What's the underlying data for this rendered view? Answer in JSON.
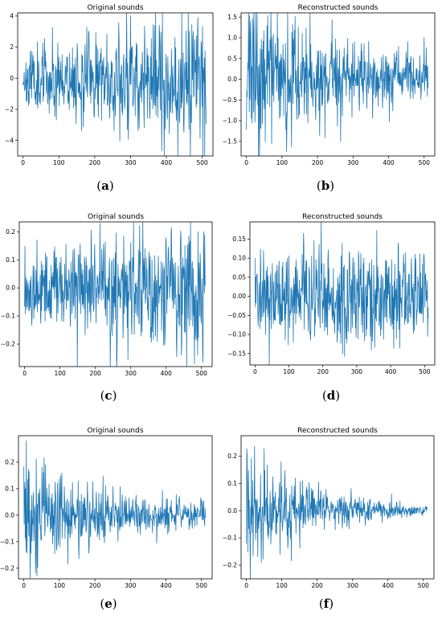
{
  "panels": [
    {
      "id": "a",
      "caption": "a",
      "chart_data": {
        "type": "line",
        "title": "Original sounds",
        "xlabel": "",
        "ylabel": "",
        "xlim": [
          -15,
          530
        ],
        "ylim": [
          -5.0,
          4.2
        ],
        "xticks": [
          0,
          100,
          200,
          300,
          400,
          500
        ],
        "yticks": [
          -4,
          -2,
          0,
          2,
          4
        ],
        "ytick_labels": [
          "−4",
          "−2",
          "0",
          "2",
          "4"
        ],
        "series": [
          {
            "color": "#1f77b4",
            "n": 512,
            "seed": 11,
            "style": "growing",
            "amp_start": 0.9,
            "amp_end": 2.3,
            "mean": 0.0
          }
        ]
      }
    },
    {
      "id": "b",
      "caption": "b",
      "chart_data": {
        "type": "line",
        "title": "Reconstructed sounds",
        "xlabel": "",
        "ylabel": "",
        "xlim": [
          -15,
          530
        ],
        "ylim": [
          -1.85,
          1.6
        ],
        "xticks": [
          0,
          100,
          200,
          300,
          400,
          500
        ],
        "yticks": [
          -1.5,
          -1.0,
          -0.5,
          0.0,
          0.5,
          1.0,
          1.5
        ],
        "ytick_labels": [
          "−1.5",
          "−1.0",
          "−0.5",
          "0.0",
          "0.5",
          "1.0",
          "1.5"
        ],
        "series": [
          {
            "color": "#1f77b4",
            "n": 512,
            "seed": 23,
            "style": "decaying",
            "amp_start": 1.1,
            "amp_end": 0.28,
            "mean": 0.0
          }
        ]
      }
    },
    {
      "id": "c",
      "caption": "c",
      "chart_data": {
        "type": "line",
        "title": "Original sounds",
        "xlabel": "",
        "ylabel": "",
        "xlim": [
          -15,
          530
        ],
        "ylim": [
          -0.28,
          0.235
        ],
        "xticks": [
          0,
          100,
          200,
          300,
          400,
          500
        ],
        "yticks": [
          -0.2,
          -0.1,
          0.0,
          0.1,
          0.2
        ],
        "ytick_labels": [
          "−0.2",
          "−0.1",
          "0.0",
          "0.1",
          "0.2"
        ],
        "series": [
          {
            "color": "#1f77b4",
            "n": 512,
            "seed": 37,
            "style": "growing",
            "amp_start": 0.06,
            "amp_end": 0.13,
            "mean": 0.0
          }
        ]
      }
    },
    {
      "id": "d",
      "caption": "d",
      "chart_data": {
        "type": "line",
        "title": "Reconstructed sounds",
        "xlabel": "",
        "ylabel": "",
        "xlim": [
          -15,
          530
        ],
        "ylim": [
          -0.18,
          0.195
        ],
        "xticks": [
          0,
          100,
          200,
          300,
          400,
          500
        ],
        "yticks": [
          -0.15,
          -0.1,
          -0.05,
          0.0,
          0.05,
          0.1,
          0.15
        ],
        "ytick_labels": [
          "−0.15",
          "−0.10",
          "−0.05",
          "0.00",
          "0.05",
          "0.10",
          "0.15"
        ],
        "series": [
          {
            "color": "#1f77b4",
            "n": 512,
            "seed": 41,
            "style": "flat",
            "amp_start": 0.06,
            "amp_end": 0.07,
            "mean": 0.0
          }
        ]
      }
    },
    {
      "id": "e",
      "caption": "e",
      "chart_data": {
        "type": "line",
        "title": "Original sounds",
        "xlabel": "",
        "ylabel": "",
        "xlim": [
          -15,
          530
        ],
        "ylim": [
          -0.24,
          0.3
        ],
        "xticks": [
          0,
          100,
          200,
          300,
          400,
          500
        ],
        "yticks": [
          -0.2,
          -0.1,
          0.0,
          0.1,
          0.2
        ],
        "ytick_labels": [
          "−0.2",
          "−0.1",
          "0.0",
          "0.1",
          "0.2"
        ],
        "series": [
          {
            "color": "#1f77b4",
            "n": 512,
            "seed": 53,
            "style": "decaying",
            "amp_start": 0.13,
            "amp_end": 0.025,
            "mean": 0.0
          }
        ]
      }
    },
    {
      "id": "f",
      "caption": "f",
      "chart_data": {
        "type": "line",
        "title": "Reconstructed sounds",
        "xlabel": "",
        "ylabel": "",
        "xlim": [
          -15,
          530
        ],
        "ylim": [
          -0.25,
          0.275
        ],
        "xticks": [
          0,
          100,
          200,
          300,
          400,
          500
        ],
        "yticks": [
          -0.2,
          -0.1,
          0.0,
          0.1,
          0.2
        ],
        "ytick_labels": [
          "−0.2",
          "−0.1",
          "0.0",
          "0.1",
          "0.2"
        ],
        "series": [
          {
            "color": "#1f77b4",
            "n": 512,
            "seed": 67,
            "style": "decaying",
            "amp_start": 0.12,
            "amp_end": 0.006,
            "mean": 0.0
          }
        ]
      }
    }
  ]
}
